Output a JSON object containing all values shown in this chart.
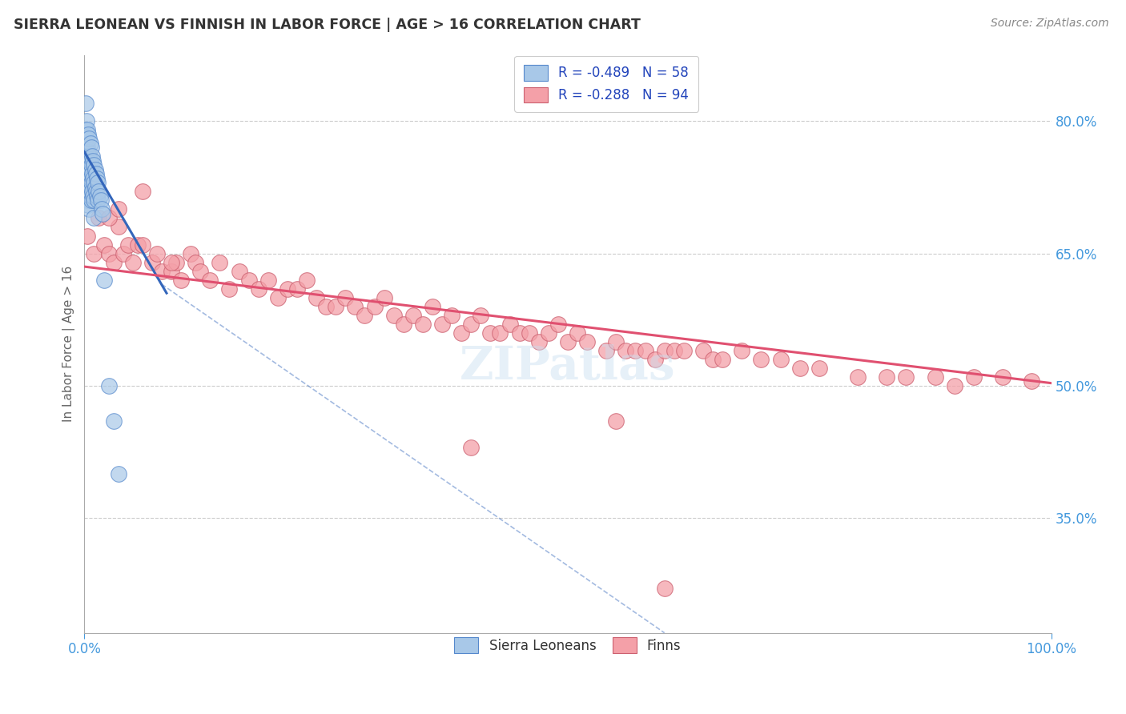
{
  "title": "SIERRA LEONEAN VS FINNISH IN LABOR FORCE | AGE > 16 CORRELATION CHART",
  "source_text": "Source: ZipAtlas.com",
  "ylabel": "In Labor Force | Age > 16",
  "xlim": [
    0.0,
    1.0
  ],
  "ylim": [
    0.22,
    0.875
  ],
  "yticks": [
    0.35,
    0.5,
    0.65,
    0.8
  ],
  "ytick_labels": [
    "35.0%",
    "50.0%",
    "65.0%",
    "80.0%"
  ],
  "xticks": [
    0.0,
    1.0
  ],
  "xtick_labels": [
    "0.0%",
    "100.0%"
  ],
  "legend_label1": "R = -0.489   N = 58",
  "legend_label2": "R = -0.288   N = 94",
  "legend_bottom_label1": "Sierra Leoneans",
  "legend_bottom_label2": "Finns",
  "blue_color": "#a8c8e8",
  "blue_edge": "#5588cc",
  "pink_color": "#f4a0a8",
  "pink_edge": "#cc6070",
  "trend_blue": "#3366bb",
  "trend_pink": "#e05070",
  "background_color": "#ffffff",
  "grid_color": "#cccccc",
  "title_color": "#333333",
  "axis_label_color": "#666666",
  "tick_color": "#4499dd",
  "source_color": "#888888",
  "sierra_x": [
    0.001,
    0.001,
    0.001,
    0.002,
    0.002,
    0.002,
    0.002,
    0.002,
    0.003,
    0.003,
    0.003,
    0.003,
    0.003,
    0.004,
    0.004,
    0.004,
    0.004,
    0.004,
    0.005,
    0.005,
    0.005,
    0.005,
    0.005,
    0.006,
    0.006,
    0.006,
    0.006,
    0.007,
    0.007,
    0.007,
    0.007,
    0.008,
    0.008,
    0.008,
    0.009,
    0.009,
    0.009,
    0.01,
    0.01,
    0.01,
    0.01,
    0.011,
    0.011,
    0.012,
    0.012,
    0.013,
    0.013,
    0.014,
    0.014,
    0.015,
    0.016,
    0.017,
    0.018,
    0.019,
    0.025,
    0.03,
    0.02,
    0.035
  ],
  "sierra_y": [
    0.82,
    0.79,
    0.76,
    0.8,
    0.78,
    0.76,
    0.74,
    0.72,
    0.79,
    0.77,
    0.75,
    0.73,
    0.71,
    0.785,
    0.765,
    0.745,
    0.725,
    0.705,
    0.78,
    0.76,
    0.74,
    0.72,
    0.7,
    0.775,
    0.755,
    0.735,
    0.715,
    0.77,
    0.75,
    0.73,
    0.71,
    0.76,
    0.74,
    0.72,
    0.755,
    0.735,
    0.715,
    0.75,
    0.73,
    0.71,
    0.69,
    0.745,
    0.725,
    0.74,
    0.72,
    0.735,
    0.715,
    0.73,
    0.71,
    0.72,
    0.715,
    0.71,
    0.7,
    0.695,
    0.5,
    0.46,
    0.62,
    0.4
  ],
  "finn_x": [
    0.003,
    0.008,
    0.01,
    0.015,
    0.02,
    0.025,
    0.03,
    0.035,
    0.04,
    0.045,
    0.05,
    0.055,
    0.06,
    0.07,
    0.075,
    0.08,
    0.09,
    0.095,
    0.1,
    0.11,
    0.115,
    0.12,
    0.13,
    0.14,
    0.15,
    0.16,
    0.17,
    0.18,
    0.19,
    0.2,
    0.21,
    0.22,
    0.23,
    0.24,
    0.25,
    0.26,
    0.27,
    0.28,
    0.29,
    0.3,
    0.31,
    0.32,
    0.33,
    0.34,
    0.35,
    0.36,
    0.37,
    0.38,
    0.39,
    0.4,
    0.41,
    0.42,
    0.43,
    0.44,
    0.45,
    0.46,
    0.47,
    0.48,
    0.49,
    0.5,
    0.51,
    0.52,
    0.54,
    0.55,
    0.56,
    0.57,
    0.58,
    0.59,
    0.6,
    0.61,
    0.62,
    0.64,
    0.65,
    0.66,
    0.68,
    0.7,
    0.72,
    0.74,
    0.76,
    0.8,
    0.83,
    0.85,
    0.88,
    0.9,
    0.92,
    0.95,
    0.98,
    0.025,
    0.035,
    0.06,
    0.09,
    0.4,
    0.55,
    0.6
  ],
  "finn_y": [
    0.67,
    0.73,
    0.65,
    0.69,
    0.66,
    0.65,
    0.64,
    0.68,
    0.65,
    0.66,
    0.64,
    0.66,
    0.66,
    0.64,
    0.65,
    0.63,
    0.63,
    0.64,
    0.62,
    0.65,
    0.64,
    0.63,
    0.62,
    0.64,
    0.61,
    0.63,
    0.62,
    0.61,
    0.62,
    0.6,
    0.61,
    0.61,
    0.62,
    0.6,
    0.59,
    0.59,
    0.6,
    0.59,
    0.58,
    0.59,
    0.6,
    0.58,
    0.57,
    0.58,
    0.57,
    0.59,
    0.57,
    0.58,
    0.56,
    0.57,
    0.58,
    0.56,
    0.56,
    0.57,
    0.56,
    0.56,
    0.55,
    0.56,
    0.57,
    0.55,
    0.56,
    0.55,
    0.54,
    0.55,
    0.54,
    0.54,
    0.54,
    0.53,
    0.54,
    0.54,
    0.54,
    0.54,
    0.53,
    0.53,
    0.54,
    0.53,
    0.53,
    0.52,
    0.52,
    0.51,
    0.51,
    0.51,
    0.51,
    0.5,
    0.51,
    0.51,
    0.505,
    0.69,
    0.7,
    0.72,
    0.64,
    0.43,
    0.46,
    0.27
  ]
}
